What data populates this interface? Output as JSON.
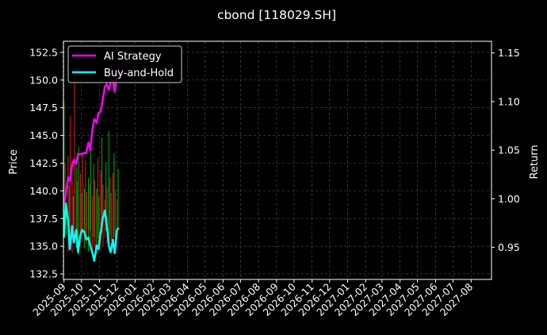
{
  "chart_data": {
    "type": "line",
    "title": "cbond [118029.SH]",
    "ylabel_left": "Price",
    "ylabel_right": "Return",
    "x_ticks": [
      "2025-09",
      "2025-10",
      "2025-11",
      "2025-12",
      "2026-01",
      "2026-02",
      "2026-03",
      "2026-04",
      "2026-05",
      "2026-06",
      "2026-07",
      "2026-08",
      "2026-09",
      "2026-10",
      "2026-11",
      "2026-12",
      "2027-01",
      "2027-02",
      "2027-03",
      "2027-04",
      "2027-05",
      "2027-06",
      "2027-07",
      "2027-08"
    ],
    "xlim": [
      "2025-08-31",
      "2027-09-05"
    ],
    "ylim_left": [
      132.0,
      153.5
    ],
    "y_ticks_left": [
      132.5,
      135.0,
      137.5,
      140.0,
      142.5,
      145.0,
      147.5,
      150.0,
      152.5
    ],
    "ylim_right": [
      0.917,
      1.162
    ],
    "y_ticks_right": [
      0.95,
      1.0,
      1.05,
      1.1,
      1.15
    ],
    "grid": true,
    "legend_position": "top-left",
    "series": [
      {
        "name": "AI Strategy",
        "axis": "right",
        "color": "#ff00ff",
        "x": [
          "2025-09-01",
          "2025-09-04",
          "2025-09-08",
          "2025-09-11",
          "2025-09-15",
          "2025-09-18",
          "2025-09-22",
          "2025-09-25",
          "2025-09-29",
          "2025-10-02",
          "2025-10-06",
          "2025-10-09",
          "2025-10-13",
          "2025-10-16",
          "2025-10-20",
          "2025-10-23",
          "2025-10-27",
          "2025-10-30",
          "2025-11-03",
          "2025-11-06",
          "2025-11-10",
          "2025-11-13",
          "2025-11-17",
          "2025-11-20",
          "2025-11-24",
          "2025-11-27",
          "2025-12-01",
          "2025-12-04"
        ],
        "y": [
          0.995,
          1.004,
          1.022,
          1.018,
          1.035,
          1.04,
          1.036,
          1.046,
          1.046,
          1.046,
          1.047,
          1.047,
          1.058,
          1.05,
          1.072,
          1.082,
          1.078,
          1.088,
          1.09,
          1.1,
          1.115,
          1.118,
          1.112,
          1.12,
          1.122,
          1.11,
          1.128,
          1.135
        ]
      },
      {
        "name": "Buy-and-Hold",
        "axis": "right",
        "color": "#00ffff",
        "x": [
          "2025-09-01",
          "2025-09-04",
          "2025-09-08",
          "2025-09-11",
          "2025-09-15",
          "2025-09-18",
          "2025-09-22",
          "2025-09-25",
          "2025-09-29",
          "2025-10-02",
          "2025-10-06",
          "2025-10-09",
          "2025-10-13",
          "2025-10-16",
          "2025-10-20",
          "2025-10-23",
          "2025-10-27",
          "2025-10-30",
          "2025-11-03",
          "2025-11-06",
          "2025-11-10",
          "2025-11-13",
          "2025-11-17",
          "2025-11-20",
          "2025-11-24",
          "2025-11-27",
          "2025-12-01",
          "2025-12-04"
        ],
        "y": [
          0.96,
          0.995,
          0.978,
          0.948,
          0.972,
          0.955,
          0.968,
          0.945,
          0.962,
          0.968,
          0.966,
          0.958,
          0.96,
          0.952,
          0.944,
          0.936,
          0.952,
          0.948,
          0.965,
          0.978,
          0.988,
          0.975,
          0.952,
          0.945,
          0.958,
          0.944,
          0.968,
          0.97
        ]
      }
    ],
    "price_bars": {
      "colors": {
        "up": "#00b000",
        "down": "#e02020"
      },
      "date": [
        "2025-09-01",
        "2025-09-03",
        "2025-09-05",
        "2025-09-08",
        "2025-09-10",
        "2025-09-12",
        "2025-09-15",
        "2025-09-17",
        "2025-09-19",
        "2025-09-22",
        "2025-09-24",
        "2025-09-26",
        "2025-09-29",
        "2025-10-01",
        "2025-10-03",
        "2025-10-06",
        "2025-10-08",
        "2025-10-10",
        "2025-10-13",
        "2025-10-15",
        "2025-10-17",
        "2025-10-20",
        "2025-10-22",
        "2025-10-24",
        "2025-10-27",
        "2025-10-29",
        "2025-10-31",
        "2025-11-03",
        "2025-11-05",
        "2025-11-07",
        "2025-11-10",
        "2025-11-12",
        "2025-11-14",
        "2025-11-17",
        "2025-11-19",
        "2025-11-21",
        "2025-11-24",
        "2025-11-26",
        "2025-11-28",
        "2025-12-01",
        "2025-12-03"
      ],
      "low": [
        136.5,
        137.0,
        136.0,
        134.5,
        136.2,
        135.8,
        134.4,
        136.5,
        135.5,
        134.8,
        135.6,
        134.2,
        135.0,
        136.2,
        135.4,
        134.8,
        136.0,
        135.2,
        134.5,
        136.4,
        135.6,
        134.4,
        135.8,
        134.9,
        134.3,
        135.7,
        135.1,
        134.6,
        136.2,
        135.0,
        135.8,
        136.4,
        135.2,
        134.6,
        136.0,
        135.5,
        134.8,
        135.8,
        135.0,
        136.2,
        136.5
      ],
      "high": [
        148.0,
        142.5,
        139.0,
        143.2,
        140.5,
        146.8,
        141.0,
        139.5,
        150.5,
        142.2,
        140.8,
        144.0,
        141.6,
        139.8,
        143.5,
        140.2,
        142.8,
        139.9,
        141.2,
        140.6,
        143.8,
        139.6,
        142.4,
        141.0,
        140.2,
        143.0,
        139.5,
        141.8,
        144.8,
        140.6,
        139.2,
        142.6,
        140.4,
        145.4,
        141.2,
        139.8,
        141.6,
        143.4,
        140.0,
        139.2,
        142.0
      ],
      "up": [
        true,
        false,
        true,
        false,
        true,
        false,
        false,
        true,
        false,
        true,
        false,
        true,
        false,
        true,
        false,
        true,
        false,
        false,
        true,
        false,
        true,
        false,
        true,
        false,
        true,
        false,
        true,
        false,
        true,
        false,
        false,
        true,
        false,
        true,
        false,
        true,
        false,
        true,
        false,
        false,
        true
      ]
    }
  }
}
